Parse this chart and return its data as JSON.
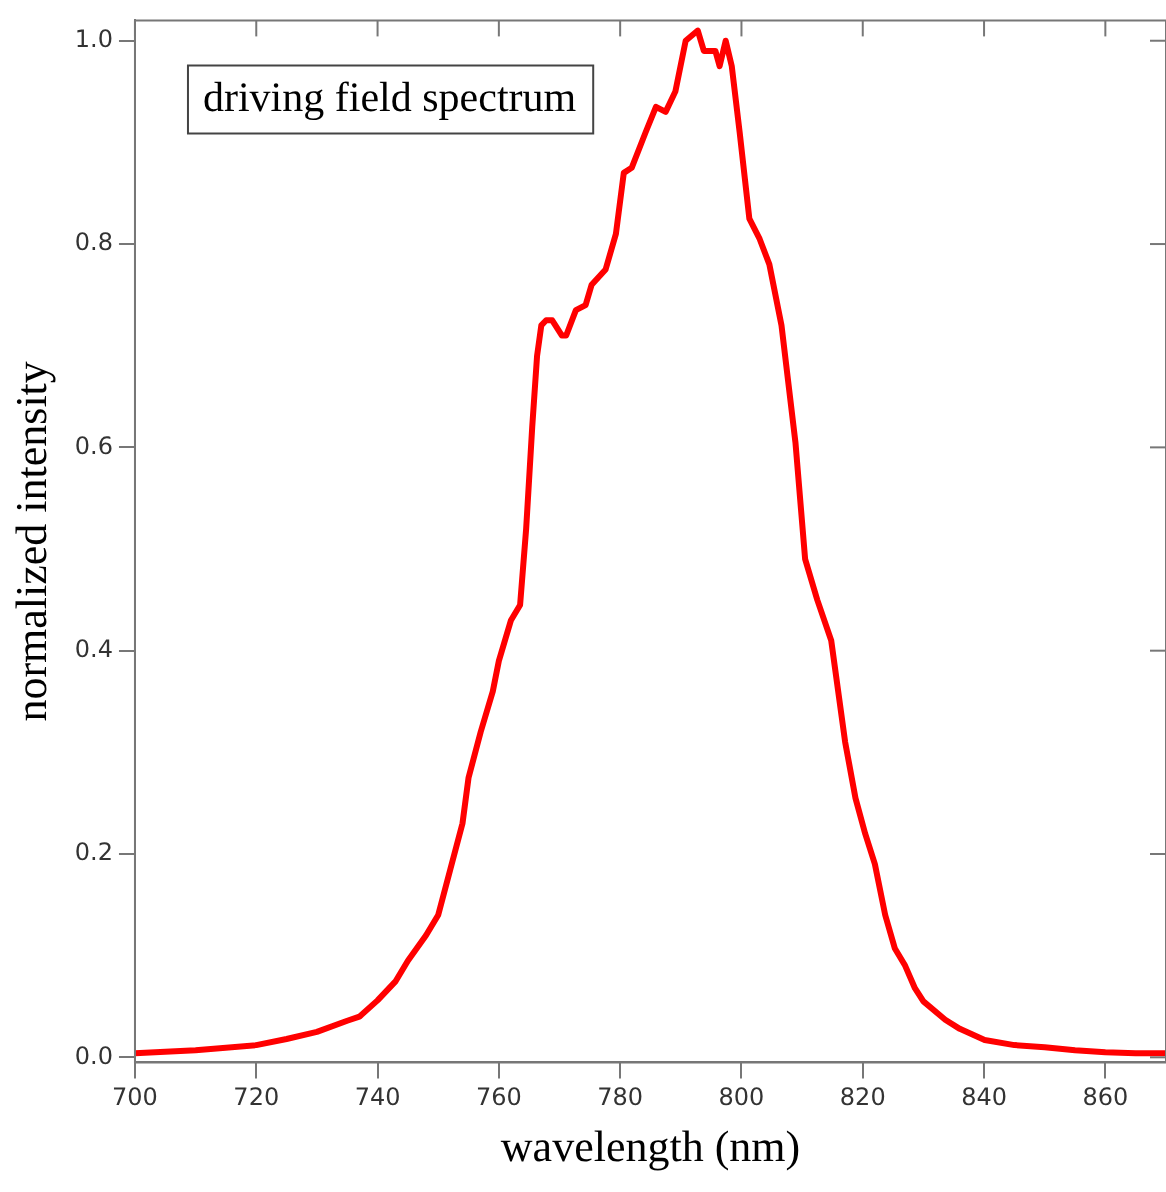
{
  "chart_data": {
    "type": "line",
    "xlabel": "wavelength (nm)",
    "ylabel": "normalized intensity",
    "annotations": [
      "driving field spectrum"
    ],
    "xlim": [
      700,
      870
    ],
    "ylim": [
      -0.005,
      1.02
    ],
    "xticks": [
      700,
      720,
      740,
      760,
      780,
      800,
      820,
      840,
      860
    ],
    "yticks": [
      {
        "value": 0,
        "label": "0.0"
      },
      0.2,
      0.4,
      0.6,
      0.8,
      {
        "value": 1,
        "label": "1.0"
      }
    ],
    "grid": false,
    "legend": false,
    "marker": "none",
    "line_style": "solid",
    "series": [
      {
        "color": "#ff0000",
        "x": [
          700,
          710,
          720,
          725,
          730,
          735,
          737,
          740,
          743,
          745,
          748,
          750,
          752,
          754,
          755,
          757,
          759,
          760,
          762,
          763.5,
          764.5,
          765.5,
          766.3,
          767,
          767.8,
          768.8,
          770.4,
          771.1,
          772.7,
          774.3,
          775.3,
          777.6,
          779.3,
          780.6,
          781.9,
          784.2,
          785.9,
          787.5,
          789.1,
          790.8,
          792.8,
          793.8,
          795.7,
          796.4,
          797.4,
          798.4,
          799.7,
          801.3,
          803,
          804.6,
          806.6,
          808.9,
          810.5,
          812.5,
          814.8,
          817.1,
          818.8,
          820.4,
          822,
          823.7,
          825.3,
          827,
          828.6,
          830,
          833.6,
          836,
          840.1,
          845,
          850,
          855,
          860,
          865,
          870
        ],
        "values": [
          0.004,
          0.007,
          0.012,
          0.018,
          0.025,
          0.036,
          0.04,
          0.056,
          0.075,
          0.095,
          0.12,
          0.14,
          0.185,
          0.23,
          0.275,
          0.32,
          0.36,
          0.39,
          0.43,
          0.445,
          0.52,
          0.62,
          0.69,
          0.72,
          0.725,
          0.725,
          0.71,
          0.71,
          0.735,
          0.74,
          0.76,
          0.775,
          0.81,
          0.87,
          0.875,
          0.91,
          0.935,
          0.93,
          0.95,
          1.0,
          1.01,
          0.99,
          0.99,
          0.975,
          1.0,
          0.975,
          0.91,
          0.825,
          0.805,
          0.78,
          0.72,
          0.605,
          0.49,
          0.45,
          0.41,
          0.31,
          0.255,
          0.22,
          0.19,
          0.14,
          0.107,
          0.09,
          0.068,
          0.055,
          0.037,
          0.028,
          0.017,
          0.012,
          0.01,
          0.007,
          0.005,
          0.004,
          0.004
        ]
      }
    ]
  }
}
